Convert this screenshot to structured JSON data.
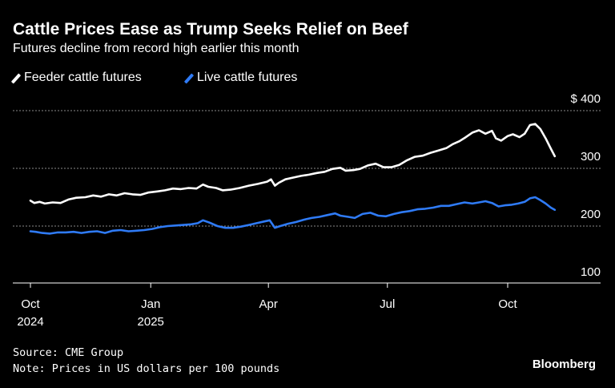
{
  "chart_data": {
    "type": "line",
    "title": "Cattle Prices Ease as Trump Seeks Relief on Beef",
    "subtitle": "Futures decline from record high earlier this month",
    "ylim": [
      100,
      400
    ],
    "yticks": [
      {
        "value": 400,
        "label": "$ 400"
      },
      {
        "value": 300,
        "label": "300"
      },
      {
        "value": 200,
        "label": "200"
      },
      {
        "value": 100,
        "label": "100"
      }
    ],
    "xlim": [
      "2024-10-01",
      "2025-11-26"
    ],
    "xticks": [
      {
        "date": "2024-10-01",
        "label": "Oct",
        "year": "2024"
      },
      {
        "date": "2025-01-01",
        "label": "Jan",
        "year": "2025"
      },
      {
        "date": "2025-04-01",
        "label": "Apr",
        "year": ""
      },
      {
        "date": "2025-07-01",
        "label": "Jul",
        "year": ""
      },
      {
        "date": "2025-10-01",
        "label": "Oct",
        "year": ""
      }
    ],
    "grid": true,
    "legend_position": "top-left",
    "series": [
      {
        "name": "Feeder cattle futures",
        "color": "#ffffff",
        "points": [
          [
            "2024-10-01",
            244
          ],
          [
            "2024-10-04",
            240
          ],
          [
            "2024-10-08",
            242
          ],
          [
            "2024-10-12",
            239
          ],
          [
            "2024-10-18",
            241
          ],
          [
            "2024-10-24",
            240
          ],
          [
            "2024-10-30",
            246
          ],
          [
            "2024-11-05",
            249
          ],
          [
            "2024-11-12",
            250
          ],
          [
            "2024-11-18",
            253
          ],
          [
            "2024-11-24",
            251
          ],
          [
            "2024-11-30",
            255
          ],
          [
            "2024-12-06",
            253
          ],
          [
            "2024-12-12",
            257
          ],
          [
            "2024-12-18",
            255
          ],
          [
            "2024-12-24",
            254
          ],
          [
            "2024-12-30",
            258
          ],
          [
            "2025-01-06",
            260
          ],
          [
            "2025-01-12",
            262
          ],
          [
            "2025-01-18",
            265
          ],
          [
            "2025-01-24",
            264
          ],
          [
            "2025-01-30",
            266
          ],
          [
            "2025-02-05",
            265
          ],
          [
            "2025-02-10",
            272
          ],
          [
            "2025-02-14",
            268
          ],
          [
            "2025-02-20",
            266
          ],
          [
            "2025-02-25",
            262
          ],
          [
            "2025-03-03",
            263
          ],
          [
            "2025-03-10",
            266
          ],
          [
            "2025-03-17",
            270
          ],
          [
            "2025-03-24",
            273
          ],
          [
            "2025-03-31",
            277
          ],
          [
            "2025-04-03",
            281
          ],
          [
            "2025-04-06",
            270
          ],
          [
            "2025-04-09",
            275
          ],
          [
            "2025-04-14",
            281
          ],
          [
            "2025-04-20",
            284
          ],
          [
            "2025-04-26",
            287
          ],
          [
            "2025-05-02",
            289
          ],
          [
            "2025-05-08",
            292
          ],
          [
            "2025-05-14",
            294
          ],
          [
            "2025-05-20",
            299
          ],
          [
            "2025-05-26",
            301
          ],
          [
            "2025-05-30",
            296
          ],
          [
            "2025-06-05",
            297
          ],
          [
            "2025-06-10",
            299
          ],
          [
            "2025-06-16",
            305
          ],
          [
            "2025-06-22",
            308
          ],
          [
            "2025-06-28",
            302
          ],
          [
            "2025-07-04",
            302
          ],
          [
            "2025-07-10",
            306
          ],
          [
            "2025-07-16",
            314
          ],
          [
            "2025-07-22",
            320
          ],
          [
            "2025-07-28",
            322
          ],
          [
            "2025-08-03",
            327
          ],
          [
            "2025-08-09",
            331
          ],
          [
            "2025-08-15",
            335
          ],
          [
            "2025-08-20",
            342
          ],
          [
            "2025-08-25",
            347
          ],
          [
            "2025-08-30",
            354
          ],
          [
            "2025-09-04",
            362
          ],
          [
            "2025-09-09",
            366
          ],
          [
            "2025-09-14",
            360
          ],
          [
            "2025-09-19",
            365
          ],
          [
            "2025-09-22",
            352
          ],
          [
            "2025-09-26",
            348
          ],
          [
            "2025-10-01",
            356
          ],
          [
            "2025-10-05",
            359
          ],
          [
            "2025-10-10",
            354
          ],
          [
            "2025-10-14",
            360
          ],
          [
            "2025-10-18",
            375
          ],
          [
            "2025-10-22",
            377
          ],
          [
            "2025-10-26",
            368
          ],
          [
            "2025-10-30",
            352
          ],
          [
            "2025-11-03",
            334
          ],
          [
            "2025-11-06",
            321
          ]
        ]
      },
      {
        "name": "Live cattle futures",
        "color": "#2f7bf6",
        "points": [
          [
            "2024-10-01",
            191
          ],
          [
            "2024-10-05",
            190
          ],
          [
            "2024-10-10",
            188
          ],
          [
            "2024-10-16",
            187
          ],
          [
            "2024-10-22",
            189
          ],
          [
            "2024-10-28",
            189
          ],
          [
            "2024-11-03",
            190
          ],
          [
            "2024-11-09",
            188
          ],
          [
            "2024-11-15",
            190
          ],
          [
            "2024-11-21",
            191
          ],
          [
            "2024-11-27",
            188
          ],
          [
            "2024-12-03",
            192
          ],
          [
            "2024-12-09",
            193
          ],
          [
            "2024-12-15",
            191
          ],
          [
            "2024-12-21",
            192
          ],
          [
            "2024-12-27",
            193
          ],
          [
            "2025-01-02",
            195
          ],
          [
            "2025-01-08",
            198
          ],
          [
            "2025-01-14",
            200
          ],
          [
            "2025-01-20",
            201
          ],
          [
            "2025-01-26",
            202
          ],
          [
            "2025-02-01",
            203
          ],
          [
            "2025-02-06",
            205
          ],
          [
            "2025-02-10",
            210
          ],
          [
            "2025-02-15",
            206
          ],
          [
            "2025-02-21",
            200
          ],
          [
            "2025-02-27",
            197
          ],
          [
            "2025-03-05",
            197
          ],
          [
            "2025-03-11",
            199
          ],
          [
            "2025-03-17",
            202
          ],
          [
            "2025-03-23",
            205
          ],
          [
            "2025-03-29",
            208
          ],
          [
            "2025-04-02",
            210
          ],
          [
            "2025-04-06",
            197
          ],
          [
            "2025-04-10",
            200
          ],
          [
            "2025-04-16",
            204
          ],
          [
            "2025-04-22",
            207
          ],
          [
            "2025-04-28",
            211
          ],
          [
            "2025-05-04",
            214
          ],
          [
            "2025-05-10",
            216
          ],
          [
            "2025-05-16",
            219
          ],
          [
            "2025-05-22",
            222
          ],
          [
            "2025-05-26",
            218
          ],
          [
            "2025-06-01",
            216
          ],
          [
            "2025-06-06",
            214
          ],
          [
            "2025-06-12",
            221
          ],
          [
            "2025-06-18",
            223
          ],
          [
            "2025-06-24",
            218
          ],
          [
            "2025-06-30",
            217
          ],
          [
            "2025-07-06",
            221
          ],
          [
            "2025-07-12",
            224
          ],
          [
            "2025-07-18",
            226
          ],
          [
            "2025-07-24",
            229
          ],
          [
            "2025-07-30",
            230
          ],
          [
            "2025-08-05",
            232
          ],
          [
            "2025-08-11",
            235
          ],
          [
            "2025-08-17",
            235
          ],
          [
            "2025-08-23",
            238
          ],
          [
            "2025-08-29",
            241
          ],
          [
            "2025-09-04",
            239
          ],
          [
            "2025-09-09",
            241
          ],
          [
            "2025-09-14",
            243
          ],
          [
            "2025-09-19",
            240
          ],
          [
            "2025-09-24",
            234
          ],
          [
            "2025-09-29",
            236
          ],
          [
            "2025-10-04",
            237
          ],
          [
            "2025-10-09",
            239
          ],
          [
            "2025-10-14",
            242
          ],
          [
            "2025-10-18",
            248
          ],
          [
            "2025-10-22",
            250
          ],
          [
            "2025-10-26",
            245
          ],
          [
            "2025-10-30",
            239
          ],
          [
            "2025-11-03",
            232
          ],
          [
            "2025-11-06",
            228
          ]
        ]
      }
    ]
  },
  "source": "Source: CME Group",
  "note": "Note: Prices in US dollars per 100 pounds",
  "brand": "Bloomberg"
}
